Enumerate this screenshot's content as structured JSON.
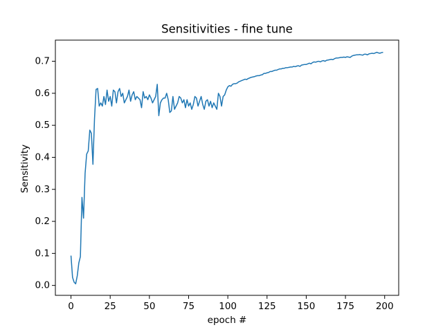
{
  "chart_data": {
    "type": "line",
    "title": "Sensitivities - fine tune",
    "xlabel": "epoch #",
    "ylabel": "Sensitivity",
    "color": "#1f77b4",
    "grid": false,
    "x": [
      0,
      1,
      2,
      3,
      4,
      5,
      6,
      7,
      8,
      9,
      10,
      11,
      12,
      13,
      14,
      15,
      16,
      17,
      18,
      19,
      20,
      21,
      22,
      23,
      24,
      25,
      26,
      27,
      28,
      29,
      30,
      31,
      32,
      33,
      34,
      35,
      36,
      37,
      38,
      39,
      40,
      41,
      42,
      43,
      44,
      45,
      46,
      47,
      48,
      49,
      50,
      51,
      52,
      53,
      54,
      55,
      56,
      57,
      58,
      59,
      60,
      61,
      62,
      63,
      64,
      65,
      66,
      67,
      68,
      69,
      70,
      71,
      72,
      73,
      74,
      75,
      76,
      77,
      78,
      79,
      80,
      81,
      82,
      83,
      84,
      85,
      86,
      87,
      88,
      89,
      90,
      91,
      92,
      93,
      94,
      95,
      96,
      97,
      98,
      99,
      100,
      101,
      102,
      103,
      104,
      105,
      106,
      107,
      108,
      109,
      110,
      111,
      112,
      113,
      114,
      115,
      116,
      117,
      118,
      119,
      120,
      121,
      122,
      123,
      124,
      125,
      126,
      127,
      128,
      129,
      130,
      131,
      132,
      133,
      134,
      135,
      136,
      137,
      138,
      139,
      140,
      141,
      142,
      143,
      144,
      145,
      146,
      147,
      148,
      149,
      150,
      151,
      152,
      153,
      154,
      155,
      156,
      157,
      158,
      159,
      160,
      161,
      162,
      163,
      164,
      165,
      166,
      167,
      168,
      169,
      170,
      171,
      172,
      173,
      174,
      175,
      176,
      177,
      178,
      179,
      180,
      181,
      182,
      183,
      184,
      185,
      186,
      187,
      188,
      189,
      190,
      191,
      192,
      193,
      194,
      195,
      196,
      197,
      198,
      199
    ],
    "values": [
      0.093,
      0.025,
      0.01,
      0.005,
      0.03,
      0.07,
      0.09,
      0.275,
      0.21,
      0.35,
      0.41,
      0.42,
      0.485,
      0.475,
      0.378,
      0.52,
      0.612,
      0.615,
      0.56,
      0.57,
      0.56,
      0.59,
      0.565,
      0.61,
      0.575,
      0.59,
      0.56,
      0.61,
      0.605,
      0.57,
      0.605,
      0.615,
      0.59,
      0.6,
      0.57,
      0.58,
      0.59,
      0.61,
      0.575,
      0.595,
      0.605,
      0.58,
      0.59,
      0.585,
      0.58,
      0.555,
      0.605,
      0.585,
      0.59,
      0.58,
      0.595,
      0.585,
      0.57,
      0.58,
      0.59,
      0.628,
      0.53,
      0.57,
      0.58,
      0.585,
      0.585,
      0.6,
      0.58,
      0.54,
      0.545,
      0.59,
      0.55,
      0.56,
      0.57,
      0.59,
      0.585,
      0.57,
      0.58,
      0.555,
      0.58,
      0.56,
      0.57,
      0.55,
      0.565,
      0.59,
      0.585,
      0.56,
      0.575,
      0.59,
      0.565,
      0.55,
      0.575,
      0.58,
      0.56,
      0.575,
      0.555,
      0.57,
      0.56,
      0.55,
      0.6,
      0.59,
      0.56,
      0.59,
      0.595,
      0.61,
      0.62,
      0.624,
      0.622,
      0.628,
      0.63,
      0.63,
      0.632,
      0.636,
      0.638,
      0.64,
      0.642,
      0.644,
      0.643,
      0.646,
      0.648,
      0.65,
      0.651,
      0.652,
      0.654,
      0.655,
      0.655,
      0.657,
      0.658,
      0.662,
      0.662,
      0.664,
      0.665,
      0.668,
      0.668,
      0.67,
      0.672,
      0.672,
      0.674,
      0.676,
      0.676,
      0.678,
      0.678,
      0.68,
      0.68,
      0.681,
      0.682,
      0.682,
      0.684,
      0.683,
      0.685,
      0.686,
      0.684,
      0.688,
      0.689,
      0.69,
      0.69,
      0.692,
      0.694,
      0.692,
      0.696,
      0.698,
      0.697,
      0.699,
      0.7,
      0.698,
      0.701,
      0.702,
      0.7,
      0.703,
      0.704,
      0.705,
      0.706,
      0.705,
      0.708,
      0.71,
      0.71,
      0.711,
      0.712,
      0.712,
      0.713,
      0.712,
      0.714,
      0.713,
      0.712,
      0.716,
      0.718,
      0.719,
      0.72,
      0.72,
      0.721,
      0.72,
      0.719,
      0.722,
      0.722,
      0.72,
      0.723,
      0.724,
      0.725,
      0.724,
      0.726,
      0.728,
      0.726,
      0.725,
      0.727,
      0.728
    ],
    "xlim": [
      -9.95,
      208.95
    ],
    "xticks": [
      0,
      25,
      50,
      75,
      100,
      125,
      150,
      175,
      200
    ],
    "ylim": [
      -0.031,
      0.766
    ],
    "yticks": [
      {
        "value": 0,
        "label": "0.0"
      },
      0.1,
      0.2,
      0.3,
      0.4,
      0.5,
      0.6,
      0.7
    ]
  }
}
